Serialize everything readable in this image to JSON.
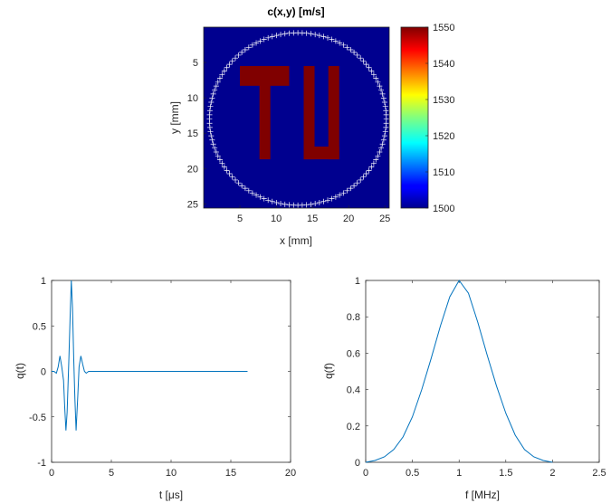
{
  "chart_data": [
    {
      "type": "heatmap",
      "title": "c(x,y) [m/s]",
      "xlabel": "x [mm]",
      "ylabel": "y [mm]",
      "xlim": [
        0,
        25.6
      ],
      "ylim": [
        25.6,
        0
      ],
      "xticks": [
        5,
        10,
        15,
        20,
        25
      ],
      "yticks": [
        5,
        10,
        15,
        20,
        25
      ],
      "background_value": 1500,
      "letter_value": 1550,
      "letters": "TU",
      "letter_regions": [
        {
          "x": [
            5,
            11.8
          ],
          "y": [
            5.5,
            8.3
          ]
        },
        {
          "x": [
            7.7,
            9.2
          ],
          "y": [
            5.5,
            18.7
          ]
        },
        {
          "x": [
            13.8,
            15.3
          ],
          "y": [
            5.5,
            18.7
          ]
        },
        {
          "x": [
            17.2,
            18.7
          ],
          "y": [
            5.5,
            18.7
          ]
        },
        {
          "x": [
            13.8,
            18.7
          ],
          "y": [
            16.9,
            18.7
          ]
        }
      ],
      "sensor_ring": {
        "center": [
          13,
          13
        ],
        "radius": 12.2,
        "count": 128,
        "marker": "+",
        "color": "#ffffff"
      },
      "colorbar": {
        "min": 1500,
        "max": 1550,
        "ticks": [
          1500,
          1510,
          1520,
          1530,
          1540,
          1550
        ],
        "colormap": "jet"
      }
    },
    {
      "type": "line",
      "xlabel": "t [μs]",
      "ylabel": "q(t)",
      "xlim": [
        0,
        20
      ],
      "ylim": [
        -1,
        1
      ],
      "xticks": [
        0,
        5,
        10,
        15,
        20
      ],
      "yticks": [
        -1,
        -0.5,
        0,
        0.5,
        1
      ],
      "line_color": "#0072bd",
      "series": [
        {
          "x": [
            0,
            0.2,
            0.4,
            0.55,
            0.7,
            0.85,
            1.0,
            1.1,
            1.2,
            1.3,
            1.45,
            1.55,
            1.65,
            1.75,
            1.85,
            1.95,
            2.05,
            2.2,
            2.3,
            2.45,
            2.6,
            2.75,
            2.9,
            3.1,
            3.3,
            3.6,
            4,
            6,
            8,
            10,
            12,
            14,
            16.4
          ],
          "y": [
            0,
            0,
            -0.02,
            0.05,
            0.17,
            0.05,
            -0.1,
            -0.4,
            -0.65,
            -0.45,
            0.15,
            0.6,
            1.0,
            0.7,
            0.15,
            -0.3,
            -0.65,
            -0.25,
            0.05,
            0.17,
            0.08,
            0.0,
            -0.02,
            0.0,
            0.0,
            0.0,
            0.0,
            0.0,
            0.0,
            0.0,
            0.0,
            0.0,
            0.0
          ]
        }
      ]
    },
    {
      "type": "line",
      "xlabel": "f [MHz]",
      "ylabel": "q(f)",
      "xlim": [
        0,
        2.5
      ],
      "ylim": [
        0,
        1
      ],
      "xticks": [
        0,
        0.5,
        1,
        1.5,
        2,
        2.5
      ],
      "yticks": [
        0,
        0.2,
        0.4,
        0.6,
        0.8,
        1
      ],
      "line_color": "#0072bd",
      "series": [
        {
          "x": [
            0,
            0.1,
            0.2,
            0.3,
            0.4,
            0.5,
            0.6,
            0.7,
            0.8,
            0.9,
            1.0,
            1.1,
            1.2,
            1.3,
            1.4,
            1.5,
            1.6,
            1.7,
            1.8,
            1.9,
            2.0
          ],
          "y": [
            0.0,
            0.01,
            0.03,
            0.07,
            0.14,
            0.25,
            0.4,
            0.57,
            0.75,
            0.91,
            1.0,
            0.93,
            0.77,
            0.59,
            0.42,
            0.27,
            0.15,
            0.07,
            0.03,
            0.01,
            0.0
          ]
        }
      ]
    }
  ]
}
